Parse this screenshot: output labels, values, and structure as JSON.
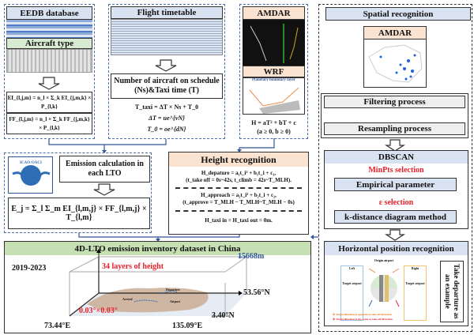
{
  "eedb": {
    "title": "EEDB database",
    "aircraft_type": "Aircraft type",
    "formula_ei": "EI_{l,j,m} = n_l × Σ_k EI_{j,m,k} × P_{l,k}",
    "formula_ff": "FF_{l,j,m} = n_l × Σ_k FF_{j,m,k} × P_{l,k}"
  },
  "timetable": {
    "title": "Flight timetable",
    "box": "Number of aircraft on schedule (Ns)&Taxi time (T)",
    "formulas": [
      "T_taxi = ΔT × Ns + T_0",
      "ΔT = ue^{vN}",
      "T_0 = oe^{dN}"
    ]
  },
  "met": {
    "amdar": "AMDAR",
    "wrf": "WRF",
    "pbl_label": "Planetary boundary layer",
    "formula": "H = aT² + bT + c",
    "condition": "(a ≥ 0, b ≥ 0)"
  },
  "emission": {
    "box": "Emission calculation in each LTO",
    "formula": "E_j = Σ_l Σ_m EI_{l,m,j} × FF_{l,m,j} × T_{l,m}",
    "logo_text": "ICAO · OACI · ИКАО"
  },
  "height": {
    "title": "Height recognition",
    "departure": "H_depature = a₁t_i² + b₁t_i + c₁,",
    "departure_t": "(t_take off = 0s~42s, t_climb = 42s~T_MLH).",
    "approach": "H_approach = a₂t_i² + b₂t_i + c₂,",
    "approach_t": "(t_approve = T_MLH − T_MLH~T_MLH − 0s)",
    "taxi": "H_taxi in = H_taxi out = 0m."
  },
  "spatial": {
    "title": "Spatial recognition",
    "amdar": "AMDAR",
    "filtering": "Filtering process",
    "resampling": "Resampling process",
    "dbscan": "DBSCAN",
    "minpts": "MinPts selection",
    "empirical": "Empirical parameter",
    "eps": "ε selection",
    "kdist": "k-distance diagram method",
    "horizontal": "Horizontal position recognition",
    "left": "Left",
    "right": "Right",
    "origin": "Origin airport",
    "target": "Target airport",
    "note1": "① Target direction is opposite to take off direction.",
    "note2": "② Target direction is the same as take off direction.",
    "example": "Take departure as an example"
  },
  "inventory": {
    "title": "4D-LTO emission inventory dataset in China",
    "years": "2019-2023",
    "top": "15668m",
    "layers": "34 layers of height",
    "lat_n": "53.56°N",
    "lat_s": "3.40°N",
    "lon_w": "73.44°E",
    "lon_e": "135.09°E",
    "resolution": "0.03°×0.03°",
    "departure": "Departure",
    "arrival": "Arrival",
    "airport": "Airport"
  },
  "colors": {
    "blue_dash": "#4a6ea9",
    "red": "#e8202a",
    "header_blue": "#d9e2f1",
    "header_green": "#c6e0b4",
    "header_peach": "#fbe3d1"
  }
}
